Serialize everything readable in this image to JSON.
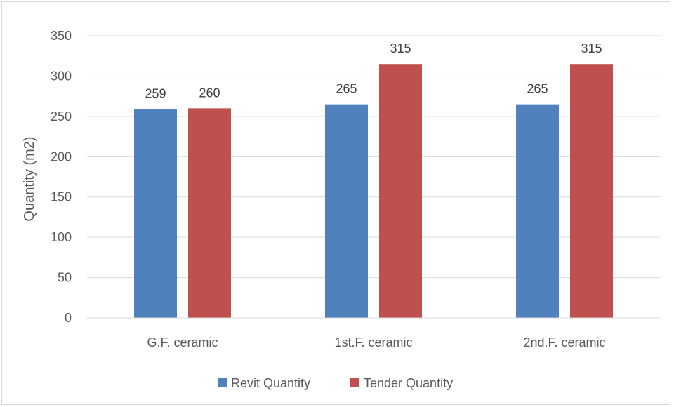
{
  "chart_data": {
    "type": "bar",
    "title": "",
    "xlabel": "",
    "ylabel": "Quantity (m2)",
    "ylim": [
      0,
      350
    ],
    "yticks": [
      0,
      50,
      100,
      150,
      200,
      250,
      300,
      350
    ],
    "categories": [
      "G.F. ceramic",
      "1st.F. ceramic",
      "2nd.F. ceramic"
    ],
    "series": [
      {
        "name": "Revit Quantity",
        "values": [
          259,
          265,
          265
        ],
        "color": "#4f81bd"
      },
      {
        "name": "Tender Quantity",
        "values": [
          260,
          315,
          315
        ],
        "color": "#c0504d"
      }
    ],
    "grid": true,
    "legend_position": "bottom",
    "data_labels": true
  }
}
